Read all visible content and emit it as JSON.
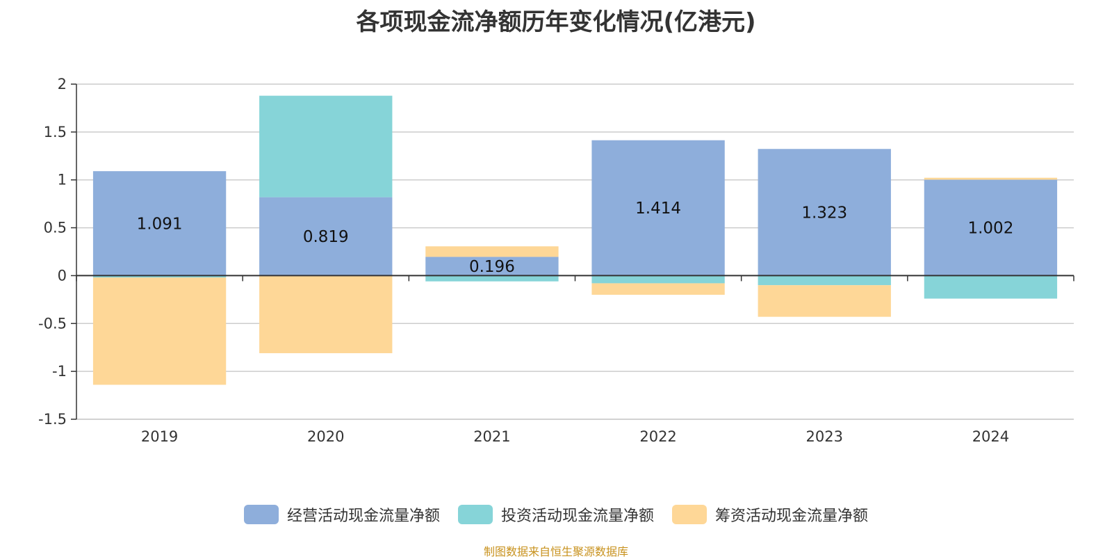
{
  "title": "各项现金流净额历年变化情况(亿港元)",
  "source": "制图数据来自恒生聚源数据库",
  "chart_data": {
    "type": "bar",
    "stacked": true,
    "categories": [
      "2019",
      "2020",
      "2021",
      "2022",
      "2023",
      "2024"
    ],
    "ylim": [
      -1.5,
      2
    ],
    "yticks": [
      "2",
      "1.5",
      "1",
      "0.5",
      "0",
      "-0.5",
      "-1",
      "-1.5"
    ],
    "grid": true,
    "legend_position": "bottom",
    "series": [
      {
        "name": "经营活动现金流量净额",
        "color": "#8eaedb",
        "values": [
          1.091,
          0.819,
          0.196,
          1.414,
          1.323,
          1.002
        ],
        "labels": [
          "1.091",
          "0.819",
          "0.196",
          "1.414",
          "1.323",
          "1.002"
        ]
      },
      {
        "name": "投资活动现金流量净额",
        "color": "#86d4d8",
        "values": [
          -0.02,
          1.06,
          -0.06,
          -0.08,
          -0.1,
          -0.24
        ]
      },
      {
        "name": "筹资活动现金流量净额",
        "color": "#fed797",
        "values": [
          -1.12,
          -0.81,
          0.11,
          -0.12,
          -0.33,
          0.02
        ]
      }
    ]
  }
}
